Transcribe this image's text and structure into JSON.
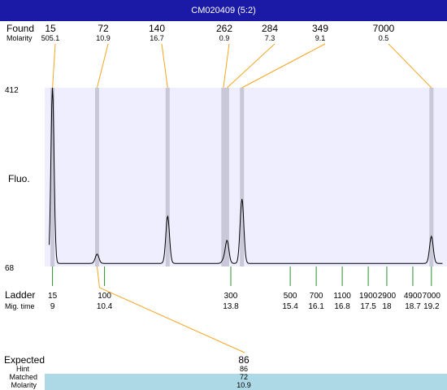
{
  "window": {
    "title": "CM020409 (5:2)"
  },
  "labels": {
    "found": "Found",
    "molarity": "Molarity",
    "fluo": "Fluo.",
    "ladder": "Ladder",
    "mig_time": "Mig. time",
    "expected": "Expected",
    "hint": "Hint",
    "matched": "Matched",
    "molarity_bottom": "Molarity"
  },
  "y_axis": {
    "top_label": "412",
    "bottom_label": "68"
  },
  "bottom": {
    "expected": "86",
    "hint": "86",
    "matched": "72",
    "molarity": "10.9"
  },
  "colors": {
    "title_bar": "#1a1aa6",
    "plot_bg": "#eeeeff",
    "found_line": "#f5a623",
    "ladder_line": "#2e8b2e",
    "matched_band": "#add8e6",
    "trace": "#000000",
    "peak_band": "#c8c8d8"
  },
  "chart_data": {
    "type": "line",
    "title": "CM020409 (5:2)",
    "ylabel": "Fluo.",
    "ylim": [
      68,
      412
    ],
    "found_peaks": [
      {
        "size": "15",
        "molarity": "505.1",
        "mig_time": 9
      },
      {
        "size": "72",
        "molarity": "10.9",
        "mig_time": 10.2
      },
      {
        "size": "140",
        "molarity": "16.7",
        "mig_time": 12.1
      },
      {
        "size": "262",
        "molarity": "0.9",
        "mig_time": 13.6
      },
      {
        "size": "284",
        "molarity": "7.3",
        "mig_time": 13.7
      },
      {
        "size": "349",
        "molarity": "9.1",
        "mig_time": 14.1
      },
      {
        "size": "7000",
        "molarity": "0.5",
        "mig_time": 19.2
      }
    ],
    "ladder": [
      {
        "size": "15",
        "mig_time": "9"
      },
      {
        "size": "100",
        "mig_time": "10.4"
      },
      {
        "size": "300",
        "mig_time": "13.8"
      },
      {
        "size": "500",
        "mig_time": "15.4"
      },
      {
        "size": "700",
        "mig_time": "16.1"
      },
      {
        "size": "1100",
        "mig_time": "16.8"
      },
      {
        "size": "1900",
        "mig_time": "17.5"
      },
      {
        "size": "2900",
        "mig_time": "18"
      },
      {
        "size": "4900",
        "mig_time": "18.7"
      },
      {
        "size": "7000",
        "mig_time": "19.2"
      }
    ],
    "trace": {
      "baseline": 74,
      "peaks": [
        {
          "t": 9.0,
          "height": 412,
          "width": 0.06
        },
        {
          "t": 10.2,
          "height": 92,
          "width": 0.07
        },
        {
          "t": 12.1,
          "height": 165,
          "width": 0.07
        },
        {
          "t": 13.6,
          "height": 80,
          "width": 0.06
        },
        {
          "t": 13.7,
          "height": 118,
          "width": 0.07
        },
        {
          "t": 14.1,
          "height": 198,
          "width": 0.07
        },
        {
          "t": 19.2,
          "height": 126,
          "width": 0.07
        }
      ]
    }
  }
}
